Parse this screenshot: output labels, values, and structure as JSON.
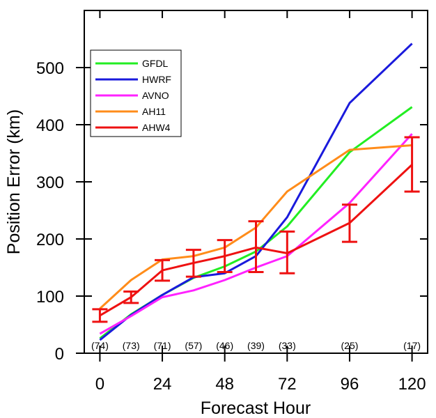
{
  "chart_data": {
    "type": "line",
    "xlabel": "Forecast Hour",
    "ylabel": "Position Error (km)",
    "xlim": [
      -6,
      126
    ],
    "ylim": [
      0,
      600
    ],
    "x_ticks": [
      0,
      24,
      48,
      72,
      96,
      120
    ],
    "y_ticks": [
      0,
      100,
      200,
      300,
      400,
      500
    ],
    "legend_position": "top-left",
    "series": [
      {
        "name": "GFDL",
        "color": "#22ee22",
        "x": [
          0,
          12,
          24,
          36,
          48,
          60,
          72,
          96,
          120
        ],
        "y": [
          26,
          68,
          102,
          132,
          152,
          178,
          222,
          352,
          431
        ]
      },
      {
        "name": "HWRF",
        "color": "#1a1adc",
        "x": [
          0,
          12,
          24,
          36,
          48,
          60,
          72,
          96,
          120
        ],
        "y": [
          23,
          67,
          102,
          133,
          140,
          170,
          238,
          438,
          542
        ]
      },
      {
        "name": "AVNO",
        "color": "#ff22ff",
        "x": [
          0,
          12,
          24,
          36,
          48,
          60,
          72,
          96,
          120
        ],
        "y": [
          34,
          65,
          98,
          110,
          128,
          150,
          170,
          263,
          384
        ]
      },
      {
        "name": "AH11",
        "color": "#ff8c1a",
        "x": [
          0,
          12,
          24,
          36,
          48,
          60,
          72,
          96,
          120
        ],
        "y": [
          78,
          128,
          164,
          170,
          185,
          220,
          283,
          356,
          364
        ]
      },
      {
        "name": "AHW4",
        "color": "#ee1111",
        "x": [
          0,
          12,
          24,
          36,
          48,
          60,
          72,
          96,
          120
        ],
        "y": [
          66,
          98,
          145,
          158,
          170,
          185,
          175,
          228,
          330
        ]
      }
    ],
    "error_bars": {
      "series": "AHW4",
      "x": [
        0,
        12,
        24,
        36,
        48,
        60,
        72,
        96,
        120
      ],
      "low": [
        55,
        88,
        127,
        134,
        142,
        142,
        140,
        195,
        283
      ],
      "high": [
        77,
        108,
        163,
        181,
        198,
        231,
        213,
        260,
        378
      ]
    },
    "sample_counts": {
      "x": [
        0,
        12,
        24,
        36,
        48,
        60,
        72,
        96,
        120
      ],
      "labels": [
        "(74)",
        "(73)",
        "(71)",
        "(57)",
        "(46)",
        "(39)",
        "(33)",
        "(25)",
        "(17)"
      ]
    }
  }
}
